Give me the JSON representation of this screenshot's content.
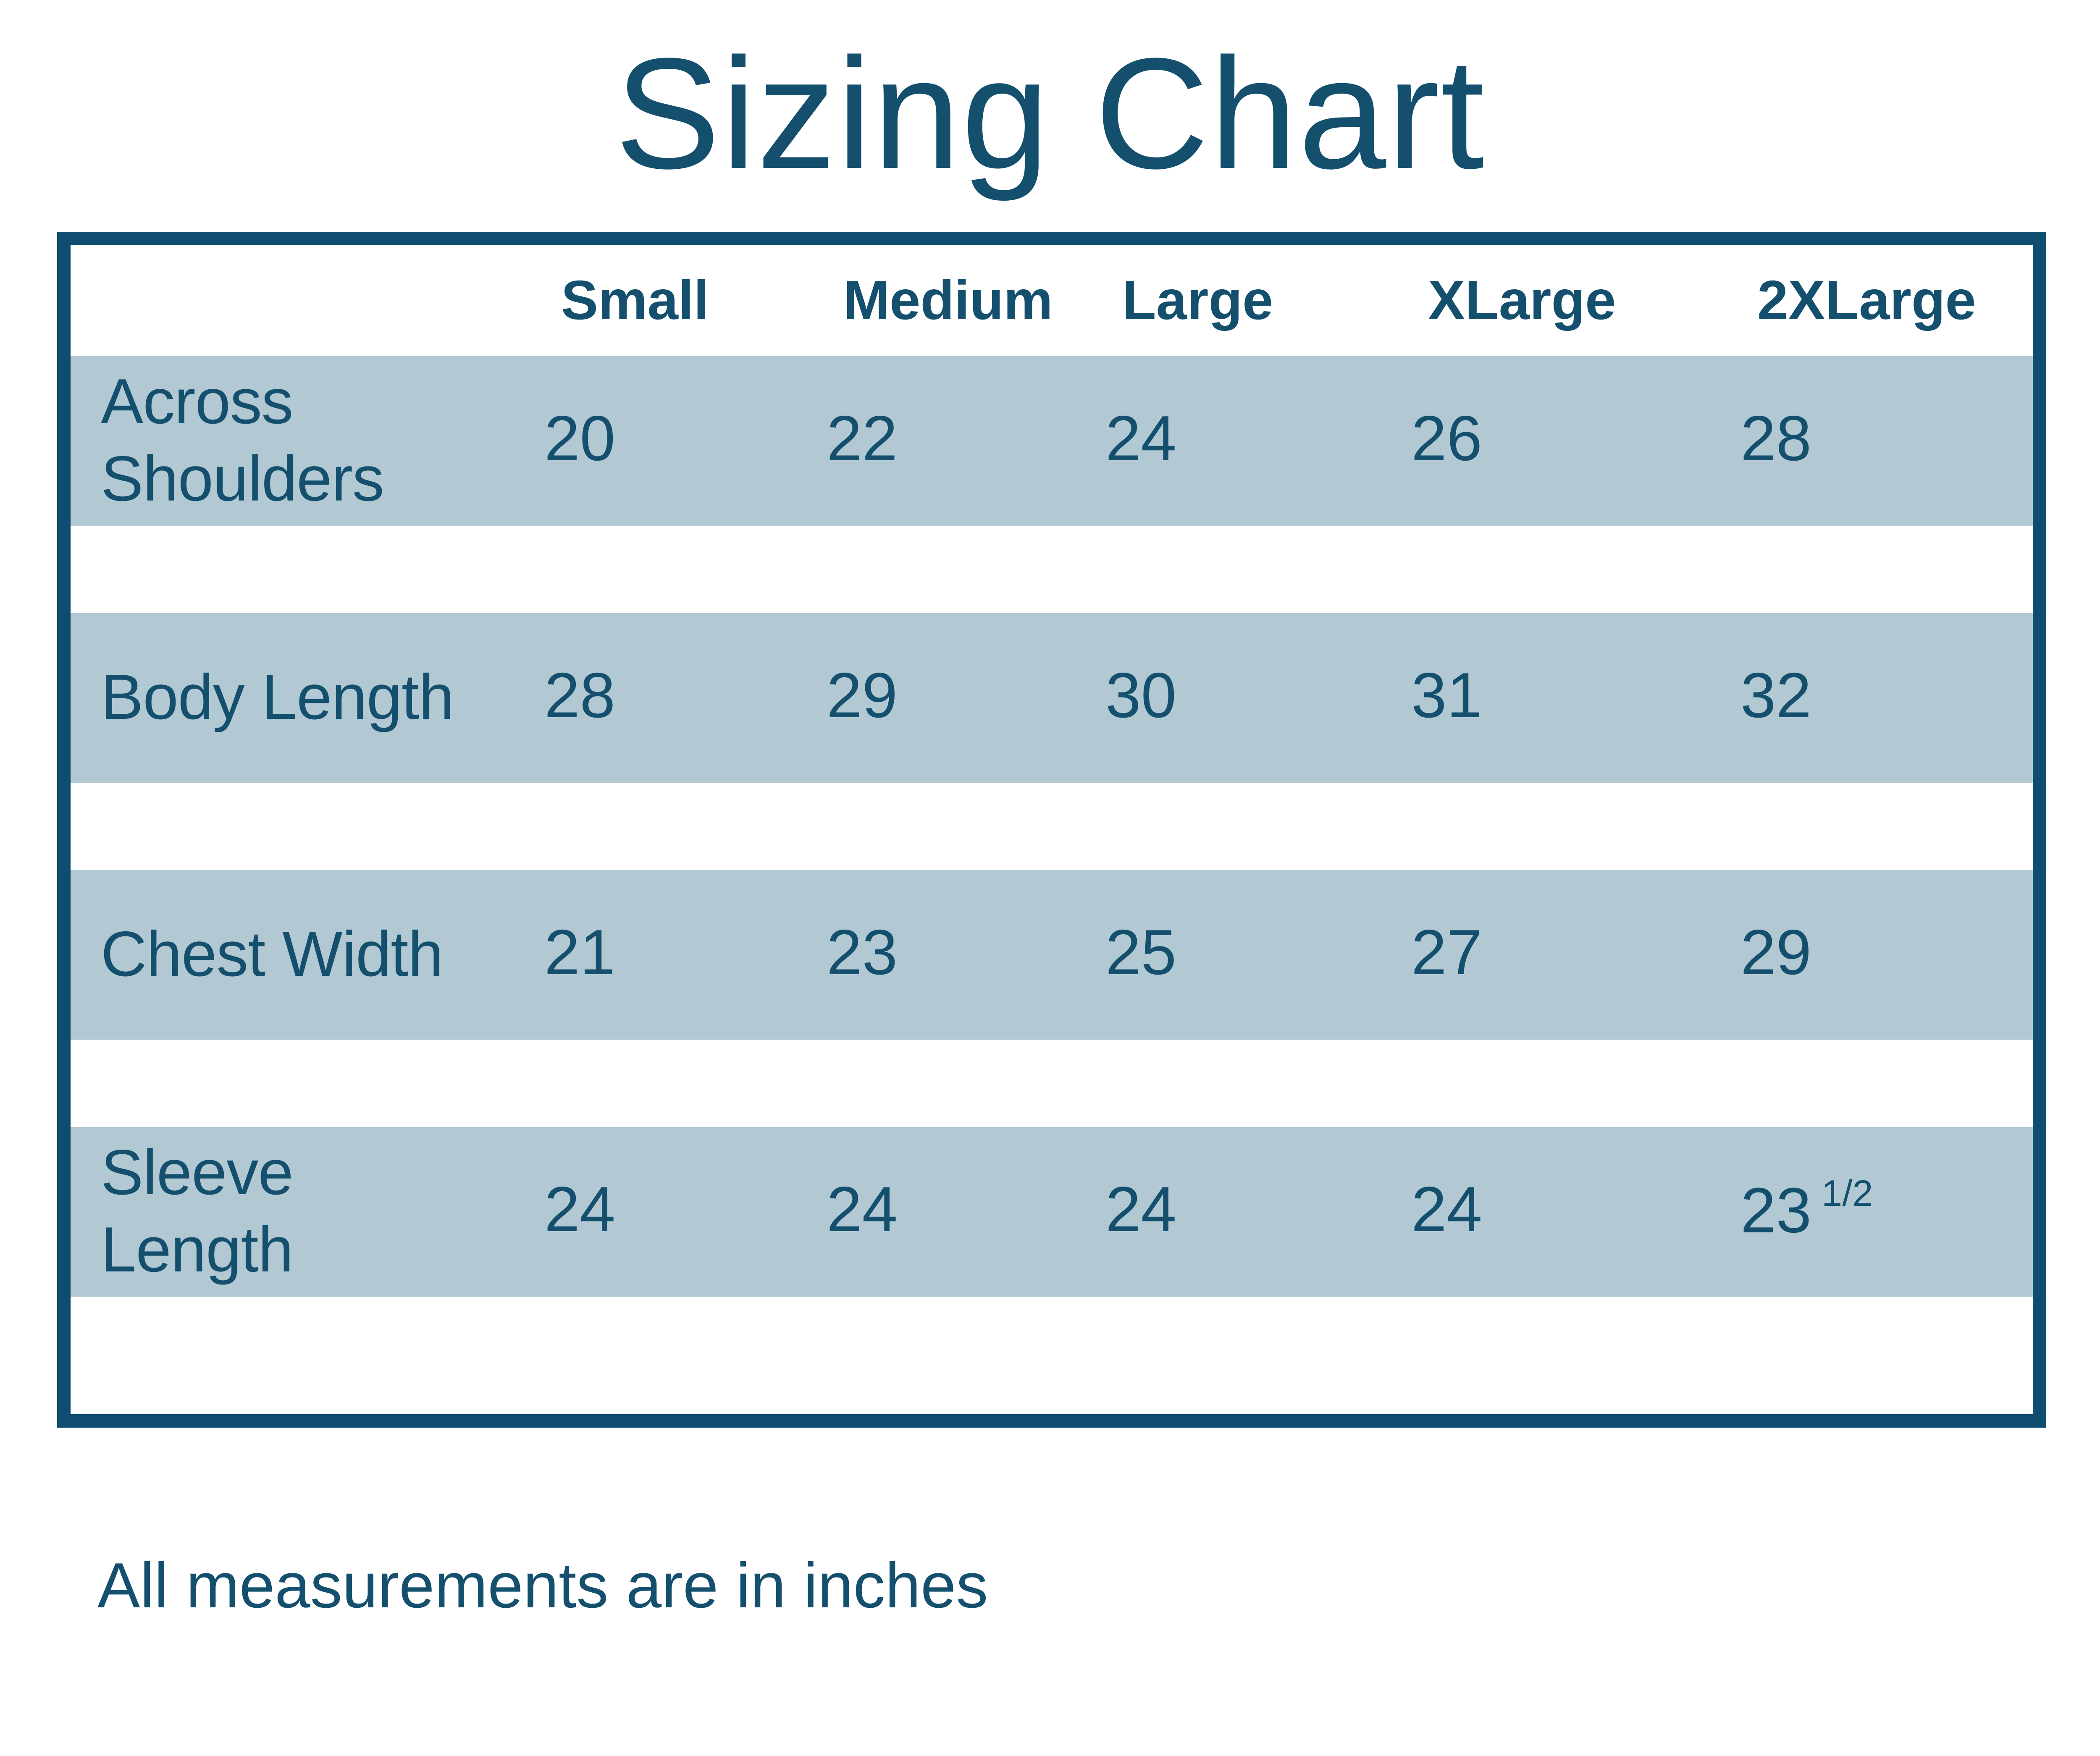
{
  "title": "Sizing Chart",
  "footer": "All measurements are in inches",
  "colors": {
    "accent_dark": "#0E4D70",
    "text_blue": "#14506E",
    "row_band_blue": "#B2C9D4",
    "background": "#FFFFFF"
  },
  "table": {
    "columns": [
      "Small",
      "Medium",
      "Large",
      "XLarge",
      "2XLarge"
    ],
    "rows": [
      {
        "label": "Across Shoulders",
        "values": [
          "20",
          "22",
          "24",
          "26",
          "28"
        ]
      },
      {
        "label": "Body Length",
        "values": [
          "28",
          "29",
          "30",
          "31",
          "32"
        ]
      },
      {
        "label": "Chest Width",
        "values": [
          "21",
          "23",
          "25",
          "27",
          "29"
        ]
      },
      {
        "label": "Sleeve Length",
        "values": [
          "24",
          "24",
          "24",
          "24",
          {
            "base": "23",
            "sup": "1/2"
          }
        ]
      }
    ]
  },
  "chart_data": {
    "type": "table",
    "title": "Sizing Chart",
    "columns": [
      "",
      "Small",
      "Medium",
      "Large",
      "XLarge",
      "2XLarge"
    ],
    "rows": [
      [
        "Across Shoulders",
        20,
        22,
        24,
        26,
        28
      ],
      [
        "Body Length",
        28,
        29,
        30,
        31,
        32
      ],
      [
        "Chest Width",
        21,
        23,
        25,
        27,
        29
      ],
      [
        "Sleeve Length",
        24,
        24,
        24,
        24,
        23.5
      ]
    ],
    "units_note": "All measurements are in inches",
    "layout": {
      "header_row": true,
      "banded_rows": true,
      "band_color": "#B2C9D4",
      "border_color": "#0E4D70"
    }
  }
}
